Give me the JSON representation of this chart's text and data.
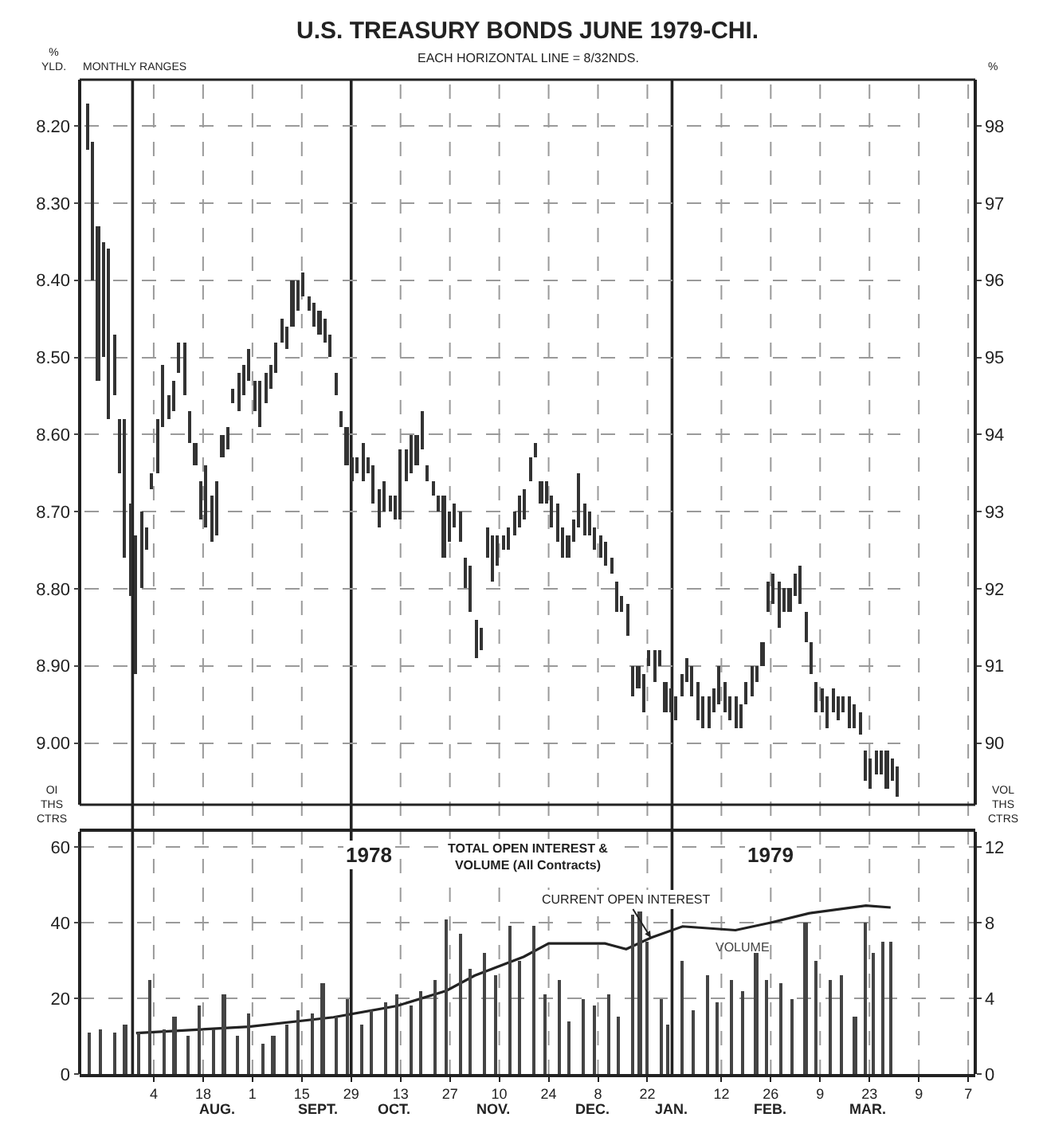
{
  "chart_data": [
    {
      "type": "bar",
      "title": "U.S. TREASURY BONDS JUNE 1979-CHI.",
      "subtitle": "EACH HORIZONTAL LINE = 8/32NDS.",
      "ylabel": "% YLD.",
      "y2label": "%",
      "annotations": [
        "MONTHLY RANGES"
      ],
      "categories": [
        null,
        null,
        null,
        null,
        null,
        null,
        null,
        null,
        null,
        null,
        null,
        null,
        null,
        null,
        null,
        null,
        null,
        null,
        null,
        null,
        null,
        null,
        null,
        null,
        null,
        null,
        null,
        null,
        null,
        null,
        null,
        null,
        null,
        null,
        null,
        null,
        null,
        null,
        null,
        null,
        null,
        null,
        null,
        null,
        null,
        null,
        null,
        null,
        null,
        null,
        null,
        null,
        null,
        null,
        null,
        null,
        null,
        null,
        null,
        null,
        null,
        null,
        null,
        null,
        null,
        null,
        null,
        null,
        null,
        null,
        null,
        null,
        null,
        null,
        null,
        null,
        null,
        null,
        null,
        null,
        null,
        null,
        null,
        null,
        null,
        null,
        null,
        null,
        null,
        null,
        null,
        null,
        null,
        null,
        null,
        null,
        null,
        null,
        null,
        null,
        null,
        null,
        null,
        null,
        null,
        null,
        null,
        null,
        null,
        null,
        null,
        null,
        null,
        null,
        null,
        null,
        null,
        null,
        null,
        null,
        null,
        null,
        null,
        null,
        null,
        null,
        null,
        null,
        null,
        null,
        null,
        null,
        null,
        null,
        null,
        null,
        null,
        null,
        null,
        null,
        null,
        null,
        null,
        null,
        null,
        null,
        null,
        null,
        null,
        null,
        null
      ],
      "ylim": [
        9.08,
        8.14
      ],
      "yticks": [
        {
          "value": 8.2,
          "label": "8.20"
        },
        {
          "value": 8.3,
          "label": "8.30"
        },
        {
          "value": 8.4,
          "label": "8.40"
        },
        {
          "value": 8.5,
          "label": "8.50"
        },
        {
          "value": 8.6,
          "label": "8.60"
        },
        {
          "value": 8.7,
          "label": "8.70"
        },
        {
          "value": 8.8,
          "label": "8.80"
        },
        {
          "value": 8.9,
          "label": "8.90"
        },
        {
          "value": 9.0,
          "label": "9.00"
        }
      ],
      "y2lim": [
        89.2,
        98.6
      ],
      "y2ticks": [
        90,
        91,
        92,
        93,
        94,
        95,
        96,
        97,
        98
      ],
      "grid": "y",
      "series": [
        {
          "color": "#333333",
          "base": [
            8.17,
            8.22,
            8.33,
            8.35,
            8.36,
            8.47,
            8.58,
            8.58,
            8.69,
            8.73,
            8.7,
            8.72,
            8.65,
            8.58,
            8.51,
            8.55,
            8.53,
            8.48,
            8.48,
            8.57,
            8.61,
            8.66,
            8.64,
            8.68,
            8.66,
            8.6,
            8.59,
            8.54,
            8.52,
            8.51,
            8.49,
            8.53,
            8.53,
            8.52,
            8.51,
            8.48,
            8.45,
            8.46,
            8.4,
            8.4,
            8.39,
            8.42,
            8.43,
            8.44,
            8.45,
            8.47,
            8.52,
            8.57,
            8.59,
            8.63,
            8.63,
            8.61,
            8.63,
            8.64,
            8.67,
            8.66,
            8.68,
            8.68,
            8.62,
            8.62,
            8.6,
            8.6,
            8.57,
            8.64,
            8.66,
            8.68,
            8.68,
            8.7,
            8.69,
            8.7,
            8.76,
            8.77,
            8.84,
            8.85,
            8.72,
            8.73,
            8.73,
            8.73,
            8.72,
            8.7,
            8.68,
            8.67,
            8.63,
            8.61,
            8.66,
            8.66,
            8.68,
            8.69,
            8.72,
            8.73,
            8.71,
            8.65,
            8.69,
            8.7,
            8.72,
            8.73,
            8.74,
            8.76,
            8.79,
            8.81,
            8.82,
            8.9,
            8.9,
            8.91,
            8.88,
            8.88,
            8.88,
            8.92,
            8.93,
            8.94,
            8.91,
            8.89,
            8.9,
            8.92,
            8.94,
            8.94,
            8.93,
            8.9,
            8.92,
            8.94,
            8.94,
            8.95,
            8.92,
            8.9,
            8.9,
            8.87,
            8.79,
            8.78,
            8.79,
            8.8,
            8.8,
            8.78,
            8.77,
            8.83,
            8.87,
            8.92,
            8.93,
            8.94,
            8.93,
            8.94,
            8.94,
            8.94,
            8.95,
            8.96,
            9.01,
            9.02,
            9.01,
            9.01,
            9.01,
            9.02,
            9.03
          ],
          "values": [
            0.06,
            0.18,
            0.2,
            0.15,
            0.22,
            0.08,
            0.07,
            0.18,
            0.12,
            0.18,
            0.1,
            0.03,
            0.02,
            0.07,
            0.08,
            0.03,
            0.04,
            0.04,
            0.07,
            0.04,
            0.03,
            0.05,
            0.08,
            0.06,
            0.07,
            0.03,
            0.03,
            0.02,
            0.05,
            0.04,
            0.04,
            0.04,
            0.06,
            0.04,
            0.03,
            0.04,
            0.03,
            0.03,
            0.06,
            0.04,
            0.03,
            0.02,
            0.03,
            0.03,
            0.03,
            0.03,
            0.03,
            0.02,
            0.05,
            0.03,
            0.02,
            0.05,
            0.02,
            0.05,
            0.05,
            0.04,
            0.02,
            0.03,
            0.09,
            0.04,
            0.05,
            0.04,
            0.05,
            0.02,
            0.02,
            0.02,
            0.08,
            0.04,
            0.03,
            0.04,
            0.04,
            0.06,
            0.05,
            0.03,
            0.04,
            0.06,
            0.04,
            0.02,
            0.03,
            0.03,
            0.04,
            0.04,
            0.03,
            0.02,
            0.03,
            0.03,
            0.04,
            0.05,
            0.04,
            0.03,
            0.03,
            0.07,
            0.04,
            0.03,
            0.03,
            0.03,
            0.03,
            0.02,
            0.04,
            0.02,
            0.04,
            0.04,
            0.03,
            0.05,
            0.02,
            0.04,
            0.02,
            0.04,
            0.03,
            0.03,
            0.03,
            0.03,
            0.04,
            0.05,
            0.04,
            0.04,
            0.03,
            0.05,
            0.04,
            0.03,
            0.04,
            0.03,
            0.03,
            0.04,
            0.02,
            0.03,
            0.04,
            0.04,
            0.06,
            0.03,
            0.03,
            0.03,
            0.05,
            0.04,
            0.04,
            0.04,
            0.03,
            0.04,
            0.03,
            0.03,
            0.02,
            0.04,
            0.03,
            0.03,
            0.04,
            0.04,
            0.03,
            0.03,
            0.05,
            0.03,
            0.04
          ]
        }
      ]
    },
    {
      "type": "bar",
      "title": "TOTAL OPEN INTEREST & VOLUME (All Contracts)",
      "ylabel": "OI THS CTRS",
      "y2label": "VOL THS CTRS",
      "annotations": [
        {
          "text": "1978",
          "x": "1978-10-04",
          "y": 58
        },
        {
          "text": "1979",
          "x": "1979-01-26",
          "y": 58
        },
        "AUG.",
        "SEPT.",
        "OCT.",
        "NOV.",
        "DEC.",
        "JAN.",
        "FEB.",
        "MAR."
      ],
      "xlim": [
        "1978-07-14",
        "1979-03-25"
      ],
      "xticks": [
        {
          "value": "1978-08-04",
          "label": "4"
        },
        {
          "value": "1978-08-18",
          "label": "18"
        },
        {
          "value": "1978-09-01",
          "label": "1"
        },
        {
          "value": "1978-09-15",
          "label": "15"
        },
        {
          "value": "1978-09-29",
          "label": "29"
        },
        {
          "value": "1978-10-13",
          "label": "13"
        },
        {
          "value": "1978-10-27",
          "label": "27"
        },
        {
          "value": "1978-11-10",
          "label": "10"
        },
        {
          "value": "1978-11-24",
          "label": "24"
        },
        {
          "value": "1978-12-08",
          "label": "8"
        },
        {
          "value": "1978-12-22",
          "label": "22"
        },
        {
          "value": "1979-01-12",
          "label": "12"
        },
        {
          "value": "1979-01-26",
          "label": "26"
        },
        {
          "value": "1979-02-09",
          "label": "9"
        },
        {
          "value": "1979-02-23",
          "label": "23"
        },
        {
          "value": "1979-03-09",
          "label": "9"
        },
        {
          "value": "1979-03-23",
          "label": "7"
        }
      ],
      "ylim": [
        0,
        64
      ],
      "yticks": [
        0,
        20,
        40,
        60
      ],
      "y2lim": [
        0,
        12.8
      ],
      "y2ticks": [
        0,
        4,
        8,
        12
      ],
      "grid": true,
      "ref_lines": [
        {
          "axis": "x",
          "value": "1978-07-29",
          "color": "#222222"
        },
        {
          "axis": "x",
          "value": "1978-09-29",
          "color": "#222222"
        },
        {
          "axis": "x",
          "value": "1978-12-29",
          "color": "#222222"
        }
      ],
      "series": [
        {
          "name": "VOLUME",
          "axis": "y2",
          "color": "#444444",
          "x": [
            "1978-07-17",
            "1978-07-20",
            "1978-07-24",
            "1978-07-27",
            "1978-07-31",
            "1978-08-03",
            "1978-08-07",
            "1978-08-10",
            "1978-08-14",
            "1978-08-17",
            "1978-08-21",
            "1978-08-24",
            "1978-08-28",
            "1978-08-31",
            "1978-09-04",
            "1978-09-07",
            "1978-09-11",
            "1978-09-14",
            "1978-09-18",
            "1978-09-21",
            "1978-09-25",
            "1978-09-28",
            "1978-10-02",
            "1978-10-05",
            "1978-10-09",
            "1978-10-12",
            "1978-10-16",
            "1978-10-19",
            "1978-10-23",
            "1978-10-26",
            "1978-10-30",
            "1978-11-02",
            "1978-11-06",
            "1978-11-09",
            "1978-11-13",
            "1978-11-16",
            "1978-11-20",
            "1978-11-23",
            "1978-11-27",
            "1978-11-30",
            "1978-12-04",
            "1978-12-07",
            "1978-12-11",
            "1978-12-14",
            "1978-12-18",
            "1978-12-20",
            "1978-12-22",
            "1978-12-26",
            "1978-12-28",
            "1979-01-01",
            "1979-01-04",
            "1979-01-08",
            "1979-01-11",
            "1979-01-15",
            "1979-01-18",
            "1979-01-22",
            "1979-01-25",
            "1979-01-29",
            "1979-02-01",
            "1979-02-05",
            "1979-02-08",
            "1979-02-12",
            "1979-02-15",
            "1979-02-19",
            "1979-02-22",
            "1979-02-24",
            "1979-02-27",
            "1979-03-01"
          ],
          "values": [
            2.2,
            2.4,
            2.2,
            2.6,
            2.2,
            5.0,
            2.4,
            3.0,
            2.0,
            3.6,
            2.4,
            4.2,
            2.0,
            3.2,
            1.6,
            2.0,
            2.6,
            3.4,
            3.2,
            4.8,
            3.0,
            4.0,
            2.6,
            3.4,
            3.8,
            4.2,
            3.6,
            4.4,
            5.0,
            8.2,
            7.4,
            5.6,
            6.4,
            5.2,
            7.8,
            6.0,
            7.8,
            4.2,
            5.0,
            2.8,
            4.0,
            3.6,
            4.2,
            3.0,
            8.4,
            8.6,
            7.0,
            4.0,
            2.6,
            6.0,
            3.4,
            5.2,
            3.8,
            5.0,
            4.4,
            6.4,
            5.0,
            4.8,
            4.0,
            8.0,
            6.0,
            5.0,
            5.2,
            3.0,
            8.0,
            6.4,
            7.0,
            7.0
          ]
        },
        {
          "name": "CURRENT OPEN INTEREST",
          "type": "line",
          "color": "#222222",
          "x": [
            "1978-07-30",
            "1978-08-31",
            "1978-09-24",
            "1978-10-12",
            "1978-10-26",
            "1978-11-03",
            "1978-11-17",
            "1978-11-24",
            "1978-12-10",
            "1978-12-16",
            "1978-12-23",
            "1979-01-01",
            "1979-01-16",
            "1979-01-26",
            "1979-02-06",
            "1979-02-22",
            "1979-03-01"
          ],
          "values": [
            10.8,
            12.5,
            15,
            18,
            22,
            26,
            31,
            34.5,
            34.5,
            33,
            36,
            39,
            38,
            40,
            42.5,
            44.5,
            44
          ]
        }
      ]
    }
  ]
}
